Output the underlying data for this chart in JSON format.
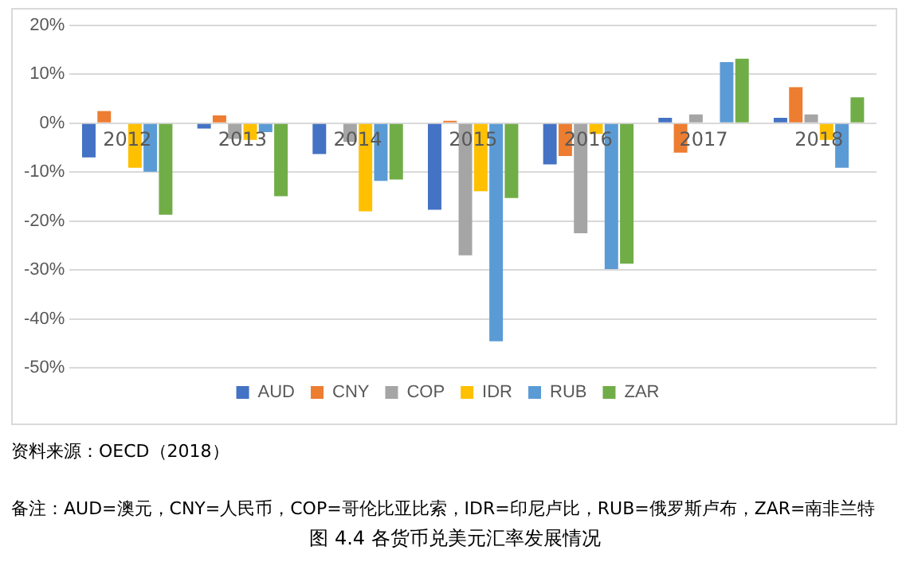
{
  "chart_data": {
    "type": "bar",
    "title": "图 4.4 各货币兑美元汇率发展情况",
    "categories": [
      "2012",
      "2013",
      "2014",
      "2015",
      "2016",
      "2017",
      "2018"
    ],
    "series": [
      {
        "name": "AUD",
        "color": "#4472c4",
        "values": [
          -7.0,
          -1.1,
          -6.3,
          -17.7,
          -8.4,
          1.1,
          1.1
        ]
      },
      {
        "name": "CNY",
        "color": "#ed7d31",
        "values": [
          2.5,
          1.6,
          0,
          0.5,
          -6.7,
          -6.0,
          7.4
        ]
      },
      {
        "name": "COP",
        "color": "#a5a5a5",
        "values": [
          0,
          -3.2,
          -3.8,
          -27.0,
          -22.5,
          1.8,
          1.8
        ]
      },
      {
        "name": "IDR",
        "color": "#ffc000",
        "values": [
          -9.1,
          -3.4,
          -18.0,
          -13.9,
          -2.2,
          0,
          -3.4
        ]
      },
      {
        "name": "RUB",
        "color": "#5b9bd5",
        "values": [
          -9.9,
          -1.8,
          -11.8,
          -44.6,
          -29.8,
          12.5,
          -9.1
        ]
      },
      {
        "name": "ZAR",
        "color": "#70ad47",
        "values": [
          -18.7,
          -14.9,
          -11.5,
          -15.3,
          -28.7,
          13.2,
          5.3
        ]
      }
    ],
    "ylim": [
      -50,
      20
    ],
    "yticks": [
      {
        "value": -50,
        "label": "-50%"
      },
      {
        "value": -40,
        "label": "-40%"
      },
      {
        "value": -30,
        "label": "-30%"
      },
      {
        "value": -20,
        "label": "-20%"
      },
      {
        "value": -10,
        "label": "-10%"
      },
      {
        "value": 0,
        "label": "0%"
      },
      {
        "value": 10,
        "label": "10%"
      },
      {
        "value": 20,
        "label": "20%"
      }
    ],
    "grid": "y",
    "legend": "bottom",
    "annotations": [
      "资料来源：OECD（2018）",
      "备注：AUD=澳元，CNY=人民币，COP=哥伦比亚比索，IDR=印尼卢比，RUB=俄罗斯卢布，ZAR=南非兰特"
    ]
  }
}
